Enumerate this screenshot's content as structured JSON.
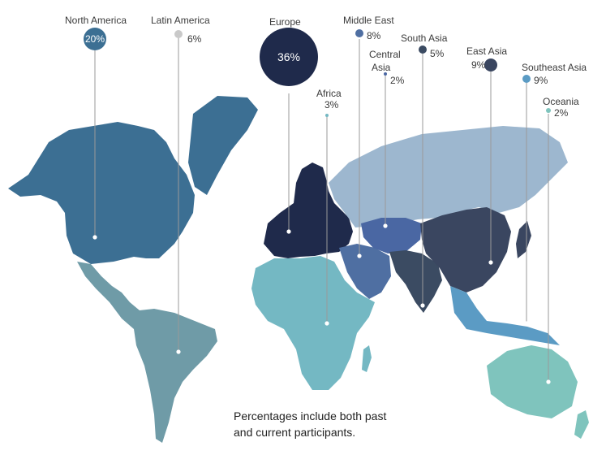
{
  "regions": [
    {
      "name": "North America",
      "percent": "20%",
      "color": "#3c6f93"
    },
    {
      "name": "Latin America",
      "percent": "6%",
      "color": "#6f9ba7"
    },
    {
      "name": "Europe",
      "percent": "36%",
      "color": "#1f2a4b"
    },
    {
      "name": "Africa",
      "percent": "3%",
      "color": "#74b8c3"
    },
    {
      "name": "Middle East",
      "percent": "8%",
      "color": "#4f6fa2"
    },
    {
      "name": "Central Asia",
      "percent": "2%",
      "color": "#4a67a3"
    },
    {
      "name": "South Asia",
      "percent": "5%",
      "color": "#3b4b62"
    },
    {
      "name": "East Asia",
      "percent": "9%",
      "color": "#3a4660"
    },
    {
      "name": "Southeast Asia",
      "percent": "9%",
      "color": "#5b9bc4"
    },
    {
      "name": "Oceania",
      "percent": "2%",
      "color": "#7fc4bd"
    }
  ],
  "russia_color": "#9db7cf",
  "greenland_color": "#3c6f93",
  "note_line1": "Percentages include both past",
  "note_line2": "and current participants."
}
